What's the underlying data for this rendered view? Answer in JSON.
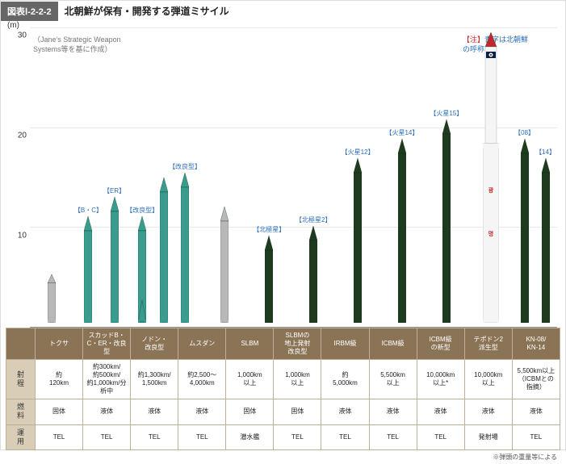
{
  "header": {
    "tag": "図表Ⅰ-2-2-2",
    "title": "北朝鮮が保有・開発する弾道ミサイル"
  },
  "yaxis": {
    "unit": "(m)",
    "max": 30,
    "ticks": [
      10,
      20,
      30
    ]
  },
  "source_note": "（Jane's Strategic Weapon\n  Systems等を基に作成）",
  "legend_note_prefix": "【注】",
  "legend_note": "青字は北朝鮮\nの呼称",
  "colors": {
    "teal": "#3a9b8f",
    "dark_green": "#1f3b1f",
    "grey": "#b8b8b8",
    "white": "#f5f5f5",
    "red": "#c1272d",
    "header_bg": "#8b7355",
    "rowhead_bg": "#d9cdb8",
    "border": "#bfae9a"
  },
  "columns": [
    {
      "name": "トクサ",
      "range": "約\n120km",
      "fuel": "固体",
      "launch": "TEL",
      "missiles": [
        {
          "h": 5,
          "color": "grey"
        }
      ],
      "col_label": ""
    },
    {
      "name": "スカッドB・C・ER・改良型",
      "range": "約300km/\n約500km/\n約1,000km/分析中",
      "fuel": "液体",
      "launch": "TEL",
      "missiles": [
        {
          "h": 11,
          "color": "teal",
          "label": "【B・C】"
        },
        {
          "h": 13,
          "color": "teal",
          "label": "【ER】"
        },
        {
          "h": 11,
          "color": "teal",
          "label": "【改良型】",
          "fin": true
        }
      ]
    },
    {
      "name": "ノドン・\n改良型",
      "range": "約1,300km/\n1,500km",
      "fuel": "液体",
      "launch": "TEL",
      "missiles": [
        {
          "h": 15,
          "color": "teal"
        },
        {
          "h": 15.5,
          "color": "teal",
          "label": "【改良型】"
        }
      ]
    },
    {
      "name": "ムスダン",
      "range": "約2,500〜\n4,000km",
      "fuel": "液体",
      "launch": "TEL",
      "missiles": [
        {
          "h": 12,
          "color": "grey"
        }
      ]
    },
    {
      "name": "SLBM",
      "range": "1,000km\n以上",
      "fuel": "固体",
      "launch": "潜水艦",
      "missiles": [
        {
          "h": 9,
          "color": "dark_green",
          "label": "【北極星】"
        }
      ]
    },
    {
      "name": "SLBMの\n地上発射\n改良型",
      "range": "1,000km\n以上",
      "fuel": "固体",
      "launch": "TEL",
      "missiles": [
        {
          "h": 10,
          "color": "dark_green",
          "label": "【北極星2】"
        }
      ]
    },
    {
      "name": "IRBM級",
      "range": "約\n5,000km",
      "fuel": "液体",
      "launch": "TEL",
      "missiles": [
        {
          "h": 17,
          "color": "dark_green",
          "label": "【火星12】"
        }
      ]
    },
    {
      "name": "ICBM級",
      "range": "5,500km\n以上",
      "fuel": "液体",
      "launch": "TEL",
      "missiles": [
        {
          "h": 19,
          "color": "dark_green",
          "label": "【火星14】"
        }
      ]
    },
    {
      "name": "ICBM級\nの新型",
      "range": "10,000km\n以上*",
      "fuel": "液体",
      "launch": "TEL",
      "missiles": [
        {
          "h": 21,
          "color": "dark_green",
          "label": "【火星15】"
        }
      ]
    },
    {
      "name": "テポドン2\n派生型",
      "range": "10,000km\n以上",
      "fuel": "液体",
      "launch": "発射場",
      "missiles": [
        {
          "h": 30,
          "color": "white",
          "wide": true,
          "flag": true
        }
      ]
    },
    {
      "name": "KN-08/\nKN-14",
      "range": "5,500km以上\n（ICBMとの\n指摘）",
      "fuel": "液体",
      "launch": "TEL",
      "missiles": [
        {
          "h": 19,
          "color": "dark_green",
          "label": "【08】"
        },
        {
          "h": 17,
          "color": "dark_green",
          "label": "【14】"
        }
      ]
    }
  ],
  "row_headers": [
    "射程",
    "燃料",
    "運用"
  ],
  "footnote": "※弾頭の重量等による"
}
